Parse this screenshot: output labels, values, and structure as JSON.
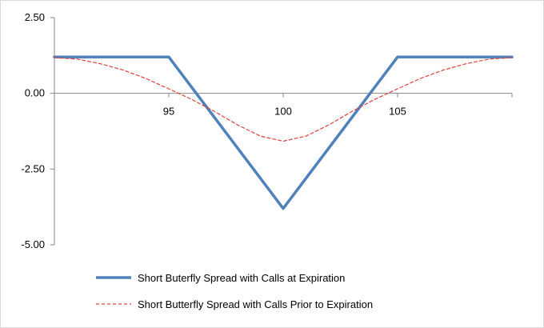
{
  "chart_data": {
    "type": "line",
    "title": "",
    "xlabel": "",
    "ylabel": "",
    "xlim": [
      90,
      110
    ],
    "ylim": [
      -5,
      2.5
    ],
    "x_ticks": [
      {
        "value": 95,
        "label": "95"
      },
      {
        "value": 100,
        "label": "100"
      },
      {
        "value": 105,
        "label": "105"
      }
    ],
    "y_ticks": [
      {
        "value": 2.5,
        "label": "2.50"
      },
      {
        "value": 0,
        "label": "0.00"
      },
      {
        "value": -2.5,
        "label": "-2.50"
      },
      {
        "value": -5,
        "label": "-5.00"
      }
    ],
    "grid": false,
    "legend_position": "bottom",
    "series": [
      {
        "name": "Short Buterfly Spread with Calls at Expiration",
        "style": "solid",
        "color": "#4f81bd",
        "x": [
          90,
          95,
          100,
          105,
          110
        ],
        "y": [
          1.2,
          1.2,
          -3.8,
          1.2,
          1.2
        ]
      },
      {
        "name": "Short Butterfly Spread with Calls Prior to Expiration",
        "style": "dashed",
        "color": "#e0403a",
        "x": [
          90,
          91,
          92,
          93,
          94,
          95,
          96,
          97,
          98,
          99,
          100,
          101,
          102,
          103,
          104,
          105,
          106,
          107,
          108,
          109,
          110
        ],
        "y": [
          1.18,
          1.13,
          0.98,
          0.77,
          0.49,
          0.15,
          -0.2,
          -0.6,
          -1.04,
          -1.41,
          -1.58,
          -1.41,
          -1.04,
          -0.6,
          -0.2,
          0.15,
          0.49,
          0.77,
          0.98,
          1.13,
          1.18
        ]
      }
    ]
  }
}
